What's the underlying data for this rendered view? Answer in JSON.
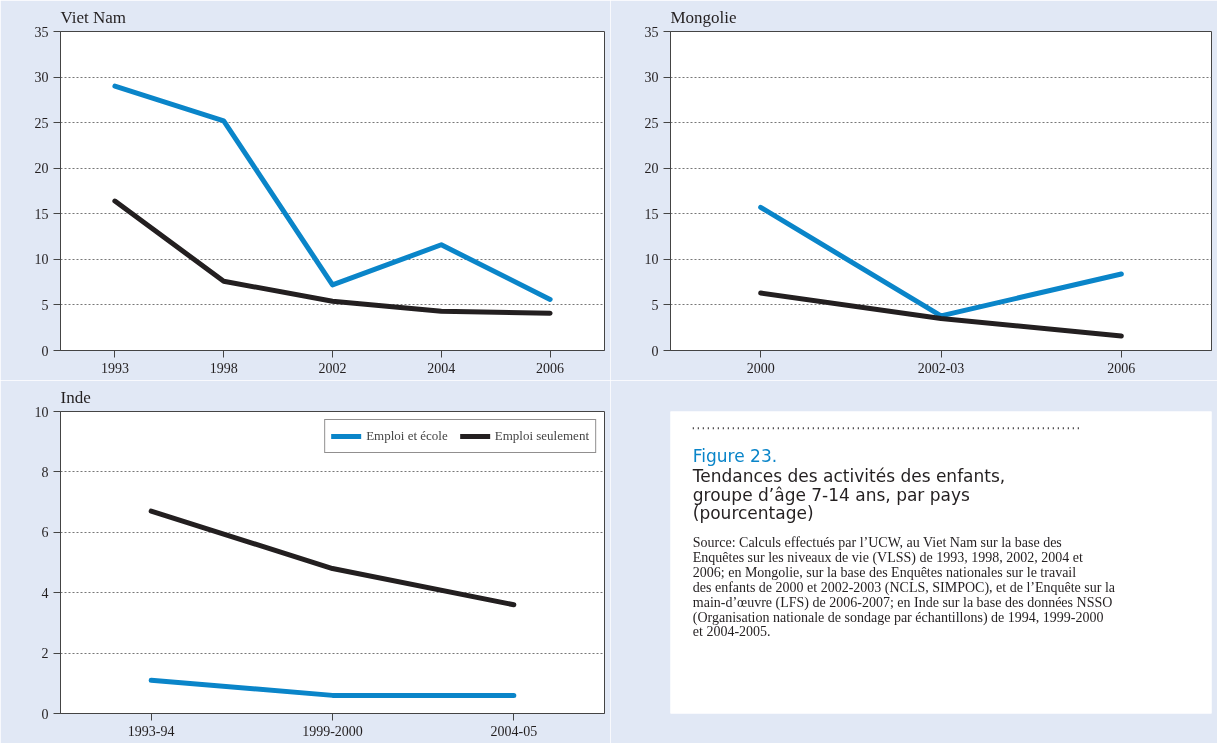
{
  "chart_data": [
    {
      "type": "line",
      "title": "Viet Nam",
      "categories": [
        "1993",
        "1998",
        "2002",
        "2004",
        "2006"
      ],
      "ylim": [
        0,
        35
      ],
      "yticks": [
        0,
        5,
        10,
        15,
        20,
        25,
        30,
        35
      ],
      "grid": "y",
      "line_style": "solid",
      "series": [
        {
          "color": "#0a85c9",
          "values": [
            29,
            25.2,
            7.2,
            11.6,
            5.6
          ]
        },
        {
          "color": "#231f20",
          "values": [
            16.4,
            7.6,
            5.4,
            4.3,
            4.1
          ]
        }
      ]
    },
    {
      "type": "line",
      "title": "Mongolie",
      "categories": [
        "2000",
        "2002-03",
        "2006"
      ],
      "ylim": [
        0,
        35
      ],
      "yticks": [
        0,
        5,
        10,
        15,
        20,
        25,
        30,
        35
      ],
      "grid": "y",
      "line_style": "solid",
      "series": [
        {
          "color": "#0a85c9",
          "values": [
            15.7,
            3.8,
            8.4
          ]
        },
        {
          "color": "#231f20",
          "values": [
            6.3,
            3.5,
            1.6
          ]
        }
      ]
    },
    {
      "type": "line",
      "title": "Inde",
      "categories": [
        "1993-94",
        "1999-2000",
        "2004-05"
      ],
      "ylim": [
        0,
        10
      ],
      "yticks": [
        0,
        2,
        4,
        6,
        8,
        10
      ],
      "grid": "y",
      "line_style": "solid",
      "legend": "top right",
      "series": [
        {
          "name": "Emploi et école",
          "color": "#0a85c9",
          "values": [
            1.1,
            0.6,
            0.6
          ]
        },
        {
          "name": "Emploi seulement",
          "color": "#231f20",
          "values": [
            6.7,
            4.8,
            3.6
          ]
        }
      ]
    },
    {
      "type": "other",
      "title": "Figure 23.",
      "subtitle": "Tendances des activités des enfants, groupe d’âge 7-14 ans, par pays (pourcentage)",
      "annotations": [
        "Source: Calculs effectués par l’UCW, au Viet Nam sur la base des Enquêtes sur les niveaux de vie (VLSS) de 1993, 1998, 2002, 2004 et 2006; en Mongolie, sur la base des Enquêtes nationales sur le travail des enfants de 2000 et 2002-2003 (NCLS, SIMPOC), et de l’Enquête sur la main-d’œuvre (LFS) de 2006-2007; en Inde sur la base des données NSSO (Organisation nationale de sondage par échantillons) de 1994, 1999-2000 et 2004-2005."
      ]
    }
  ]
}
